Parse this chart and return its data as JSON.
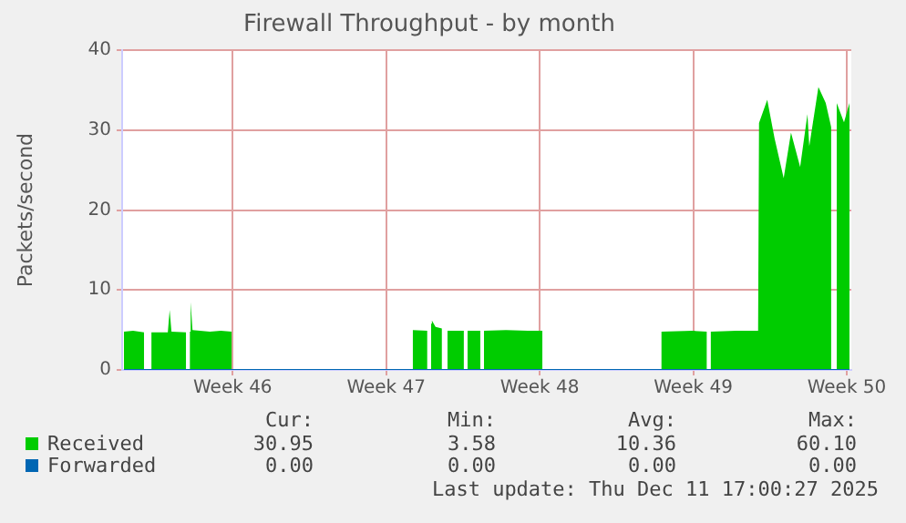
{
  "chart_data": {
    "type": "area",
    "title": "Firewall Throughput - by month",
    "ylabel": "Packets/second",
    "x": [
      "2025-11-08T13:00",
      "2025-11-08T23:00",
      "2025-11-09T11:00",
      "2025-11-09T12:00",
      "2025-11-09T19:00",
      "2025-11-10T13:00",
      "2025-11-10T15:00",
      "2025-11-10T17:00",
      "2025-11-11T09:00",
      "2025-11-11T10:00",
      "2025-11-11T13:00",
      "2025-11-11T14:00",
      "2025-11-11T16:00",
      "2025-11-12T11:00",
      "2025-11-12T23:00",
      "2025-11-13T11:00",
      "2025-11-13T12:00",
      "2025-11-21T17:00",
      "2025-11-22T09:00",
      "2025-11-22T11:00",
      "2025-11-22T13:00",
      "2025-11-22T14:00",
      "2025-11-22T18:00",
      "2025-11-23T01:00",
      "2025-11-23T03:00",
      "2025-11-23T07:00",
      "2025-11-24T01:00",
      "2025-11-24T03:00",
      "2025-11-24T05:00",
      "2025-11-24T08:00",
      "2025-11-24T12:00",
      "2025-11-24T16:00",
      "2025-11-24T19:00",
      "2025-11-24T21:00",
      "2025-11-24T23:00",
      "2025-11-25T23:00",
      "2025-11-26T23:00",
      "2025-11-27T15:00",
      "2025-11-27T16:00",
      "2025-12-03T01:00",
      "2025-12-04T11:00",
      "2025-12-05T03:00",
      "2025-12-05T04:00",
      "2025-12-05T07:00",
      "2025-12-06T11:00",
      "2025-12-07T11:00",
      "2025-12-07T12:00",
      "2025-12-07T21:00",
      "2025-12-08T05:00",
      "2025-12-08T15:00",
      "2025-12-08T23:00",
      "2025-12-09T09:00",
      "2025-12-09T17:00",
      "2025-12-09T19:00",
      "2025-12-10T05:00",
      "2025-12-10T13:00",
      "2025-12-10T19:00",
      "2025-12-10T21:00",
      "2025-12-11T01:00",
      "2025-12-11T09:00",
      "2025-12-11T15:00"
    ],
    "series": [
      {
        "name": "Received",
        "color": "#00cc00",
        "values": [
          4.8,
          4.9,
          4.7,
          null,
          4.7,
          4.7,
          7.5,
          4.8,
          4.7,
          null,
          4.8,
          8.5,
          5.0,
          4.8,
          4.9,
          4.8,
          null,
          5.0,
          4.9,
          null,
          5.8,
          6.2,
          5.4,
          5.2,
          null,
          4.9,
          4.9,
          null,
          4.9,
          4.9,
          4.9,
          4.9,
          4.9,
          null,
          4.9,
          5.0,
          4.9,
          4.9,
          null,
          4.8,
          4.9,
          4.8,
          null,
          4.8,
          4.9,
          4.9,
          30.9,
          33.8,
          29,
          24,
          29.7,
          25.4,
          32,
          28,
          35.4,
          33.4,
          30.4,
          null,
          33.4,
          31,
          33.4
        ]
      },
      {
        "name": "Forwarded",
        "type": "line",
        "color": "#0066b3",
        "x": [
          "2025-11-08T13:00",
          "2025-12-11T15:00"
        ],
        "values": [
          0,
          0
        ]
      }
    ],
    "xlim": [
      "2025-11-08T11:00",
      "2025-12-11T17:00"
    ],
    "xticks": [
      {
        "value": "2025-11-13T12:00",
        "label": "Week 46"
      },
      {
        "value": "2025-11-20T12:00",
        "label": "Week 47"
      },
      {
        "value": "2025-11-27T12:00",
        "label": "Week 48"
      },
      {
        "value": "2025-12-04T12:00",
        "label": "Week 49"
      },
      {
        "value": "2025-12-11T12:00",
        "label": "Week 50"
      }
    ],
    "ylim": [
      0,
      40
    ],
    "yticks": [
      0,
      10,
      20,
      30,
      40
    ],
    "grid": true,
    "legend": "bottom left",
    "annotations": [
      "Cur:",
      "Min:",
      "Avg:",
      "Max:",
      "30.95",
      "3.58",
      "10.36",
      "60.10",
      "0.00",
      "0.00",
      "0.00",
      "0.00",
      "Last update: Thu Dec 11 17:00:27 2025"
    ]
  }
}
